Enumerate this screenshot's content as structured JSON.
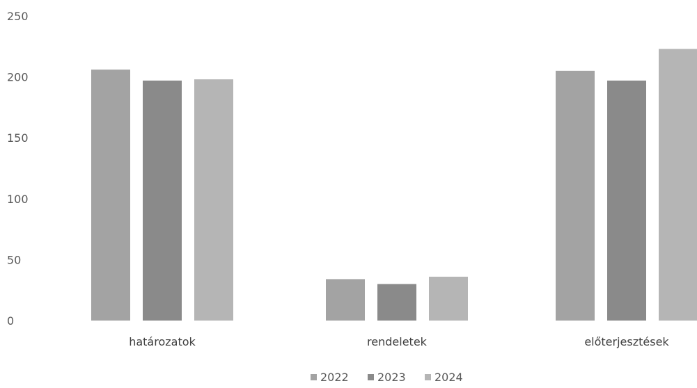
{
  "chart_data": {
    "type": "bar",
    "title": "",
    "xlabel": "",
    "ylabel": "",
    "categories": [
      "határozatok",
      "rendeletek",
      "előterjesztések"
    ],
    "series": [
      {
        "name": "2022",
        "values": [
          206,
          34,
          205
        ],
        "color": "#a3a3a3"
      },
      {
        "name": "2023",
        "values": [
          197,
          30,
          197
        ],
        "color": "#8a8a8a"
      },
      {
        "name": "2024",
        "values": [
          198,
          36,
          223
        ],
        "color": "#b5b5b5"
      }
    ],
    "ylim": [
      0,
      250
    ],
    "yticks": [
      "0",
      "50",
      "100",
      "150",
      "200",
      "250"
    ],
    "grid": false,
    "legend_position": "bottom"
  }
}
